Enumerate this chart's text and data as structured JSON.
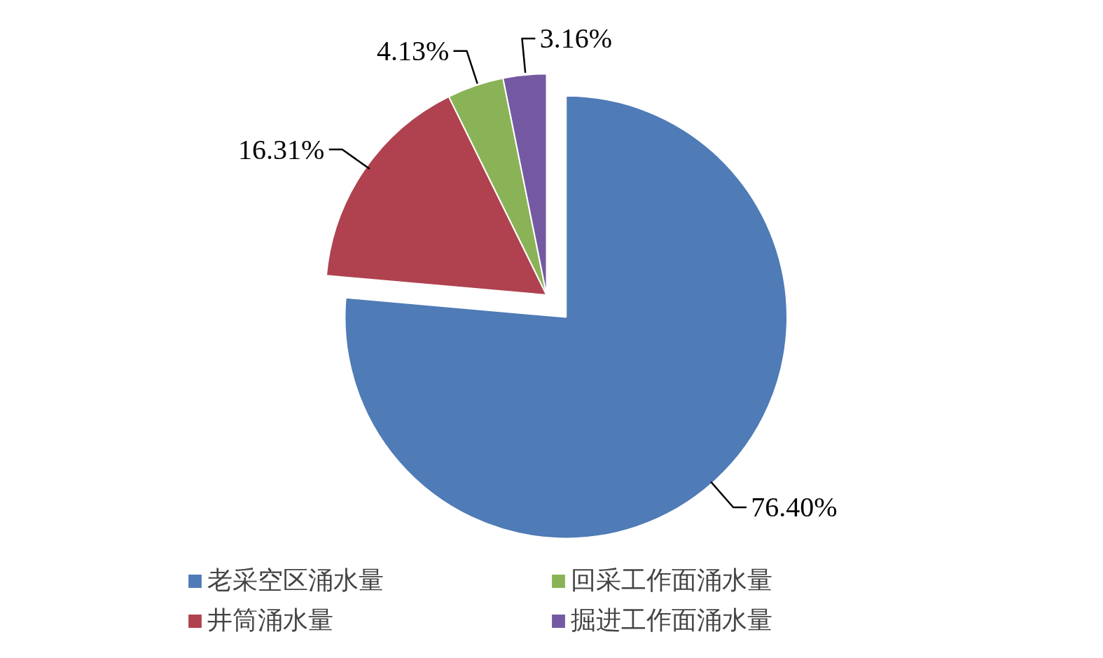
{
  "chart_data": {
    "type": "pie",
    "categories": [
      "老采空区涌水量",
      "井筒涌水量",
      "回采工作面涌水量",
      "掘进工作面涌水量"
    ],
    "values": [
      76.4,
      16.31,
      4.13,
      3.16
    ],
    "value_labels": [
      "76.40%",
      "16.31%",
      "4.13%",
      "3.16%"
    ],
    "colors": [
      "#4f7bb6",
      "#b0424f",
      "#8ab357",
      "#7459a2"
    ],
    "legend": "bottom"
  }
}
